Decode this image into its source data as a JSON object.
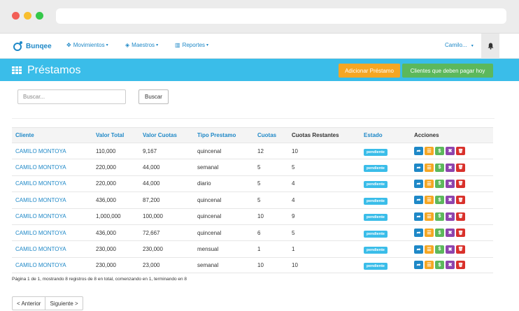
{
  "nav": {
    "brand": "Bunqee",
    "items": [
      {
        "label": "Movimientos",
        "icon": "arrows-icon"
      },
      {
        "label": "Maestros",
        "icon": "cube-icon"
      },
      {
        "label": "Reportes",
        "icon": "bar-chart-icon"
      }
    ],
    "user": "Camilo..."
  },
  "header": {
    "title": "Préstamos",
    "add_button": "Adicionar Préstamo",
    "debt_button": "Clientes que deben pagar hoy"
  },
  "search": {
    "placeholder": "Buscar...",
    "button": "Buscar"
  },
  "table": {
    "columns": [
      "Cliente",
      "Valor Total",
      "Valor Cuotas",
      "Tipo Prestamo",
      "Cuotas",
      "Cuotas Restantes",
      "Estado",
      "Acciones"
    ],
    "rows": [
      {
        "cliente": "CAMILO MONTOYA",
        "total": "110,000",
        "cuota": "9,167",
        "tipo": "quincenal",
        "cuotas": "12",
        "restantes": "10",
        "estado": "pendiente"
      },
      {
        "cliente": "CAMILO MONTOYA",
        "total": "220,000",
        "cuota": "44,000",
        "tipo": "semanal",
        "cuotas": "5",
        "restantes": "5",
        "estado": "pendiente"
      },
      {
        "cliente": "CAMILO MONTOYA",
        "total": "220,000",
        "cuota": "44,000",
        "tipo": "diario",
        "cuotas": "5",
        "restantes": "4",
        "estado": "pendiente"
      },
      {
        "cliente": "CAMILO MONTOYA",
        "total": "436,000",
        "cuota": "87,200",
        "tipo": "quincenal",
        "cuotas": "5",
        "restantes": "4",
        "estado": "pendiente"
      },
      {
        "cliente": "CAMILO MONTOYA",
        "total": "1,000,000",
        "cuota": "100,000",
        "tipo": "quincenal",
        "cuotas": "10",
        "restantes": "9",
        "estado": "pendiente"
      },
      {
        "cliente": "CAMILO MONTOYA",
        "total": "436,000",
        "cuota": "72,667",
        "tipo": "quincenal",
        "cuotas": "6",
        "restantes": "5",
        "estado": "pendiente"
      },
      {
        "cliente": "CAMILO MONTOYA",
        "total": "230,000",
        "cuota": "230,000",
        "tipo": "mensual",
        "cuotas": "1",
        "restantes": "1",
        "estado": "pendiente"
      },
      {
        "cliente": "CAMILO MONTOYA",
        "total": "230,000",
        "cuota": "23,000",
        "tipo": "semanal",
        "cuotas": "10",
        "restantes": "10",
        "estado": "pendiente"
      }
    ],
    "actions": [
      {
        "icon": "share-icon",
        "glyph": "➦",
        "color": "#1e88c7"
      },
      {
        "icon": "list-icon",
        "glyph": "☰",
        "color": "#f5a623"
      },
      {
        "icon": "dollar-icon",
        "glyph": "$",
        "color": "#5cb85c"
      },
      {
        "icon": "close-icon",
        "glyph": "✖",
        "color": "#8e44ad"
      },
      {
        "icon": "trash-icon",
        "glyph": "🗑",
        "color": "#d9312b"
      }
    ]
  },
  "pagination": {
    "summary": "Página 1 de 1, mostrando 8 registros de 8 en total, comenzando en 1, terminando en 8",
    "prev": "< Anterior",
    "next": "Siguiente >"
  },
  "colors": {
    "accent": "#3abde9",
    "link": "#1e88c7",
    "warning": "#f5a623",
    "success": "#5cb85c"
  }
}
